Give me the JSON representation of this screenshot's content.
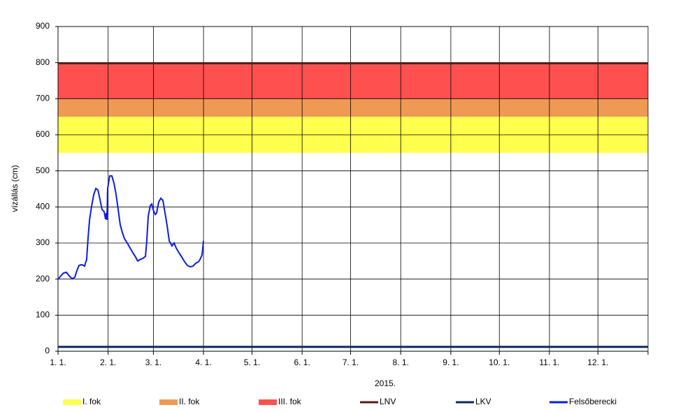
{
  "chart_data": {
    "type": "line",
    "y_label": "vízállás (cm)",
    "x_label": "2015.",
    "xlim": [
      0,
      365
    ],
    "xticks": [
      {
        "value": 0,
        "label": "1. 1."
      },
      {
        "value": 31,
        "label": "2. 1."
      },
      {
        "value": 59,
        "label": "3. 1."
      },
      {
        "value": 90,
        "label": "4. 1."
      },
      {
        "value": 120,
        "label": "5. 1."
      },
      {
        "value": 151,
        "label": "6. 1."
      },
      {
        "value": 181,
        "label": "7. 1."
      },
      {
        "value": 212,
        "label": "8. 1."
      },
      {
        "value": 243,
        "label": "9. 1."
      },
      {
        "value": 273,
        "label": "10. 1."
      },
      {
        "value": 304,
        "label": "11. 1."
      },
      {
        "value": 334,
        "label": "12. 1."
      }
    ],
    "ylim": [
      0,
      900
    ],
    "yticks": [
      0,
      100,
      200,
      300,
      400,
      500,
      600,
      700,
      800,
      900
    ],
    "grid": true,
    "legend": "bottom",
    "bands": [
      {
        "name": "I. fok",
        "color": "#ffff4d",
        "from": 550,
        "to": 650
      },
      {
        "name": "II. fok",
        "color": "#ee9a55",
        "from": 650,
        "to": 700
      },
      {
        "name": "III. fok",
        "color": "#ff5050",
        "from": 700,
        "to": 795
      }
    ],
    "series": [
      {
        "name": "LNV",
        "color": "#5a1a14",
        "x": [
          0,
          365
        ],
        "values": [
          798,
          798
        ]
      },
      {
        "name": "LKV",
        "color": "#0d2a5c",
        "x": [
          0,
          365
        ],
        "values": [
          12,
          12
        ]
      },
      {
        "name": "Felsőberecki",
        "color": "#0a1ee0",
        "x": [
          0,
          1.7,
          3.5,
          5.2,
          6.9,
          8.7,
          10.4,
          11.7,
          13,
          14.7,
          16.4,
          17.7,
          18.6,
          19.5,
          20.8,
          22.1,
          23.4,
          24.7,
          25.9,
          27.2,
          28.5,
          29.4,
          29.8,
          30.3,
          30.7,
          32,
          33.3,
          34.6,
          35.9,
          37.2,
          38.5,
          39.8,
          41.1,
          42.8,
          44.6,
          46.3,
          48,
          49.3,
          50.6,
          52.3,
          54.1,
          54.9,
          55.8,
          57.1,
          58,
          58.8,
          60.1,
          61,
          62.3,
          63.6,
          64.9,
          66.2,
          67.5,
          68.8,
          70.5,
          71.8,
          73.1,
          74.8,
          76.6,
          78.3,
          80,
          81.7,
          83.5,
          85.2,
          86.9,
          87.8,
          89.1,
          90
        ],
        "values": [
          199,
          209,
          217,
          219,
          209,
          201,
          205,
          224,
          238,
          240,
          236,
          254,
          315,
          364,
          403,
          434,
          451,
          447,
          422,
          393,
          387,
          366,
          383,
          364,
          451,
          486,
          486,
          466,
          435,
          393,
          350,
          329,
          312,
          300,
          286,
          273,
          261,
          250,
          254,
          257,
          263,
          306,
          374,
          404,
          408,
          393,
          379,
          383,
          414,
          424,
          418,
          383,
          348,
          306,
          292,
          300,
          286,
          273,
          261,
          248,
          238,
          234,
          236,
          244,
          248,
          254,
          267,
          306
        ]
      }
    ]
  }
}
